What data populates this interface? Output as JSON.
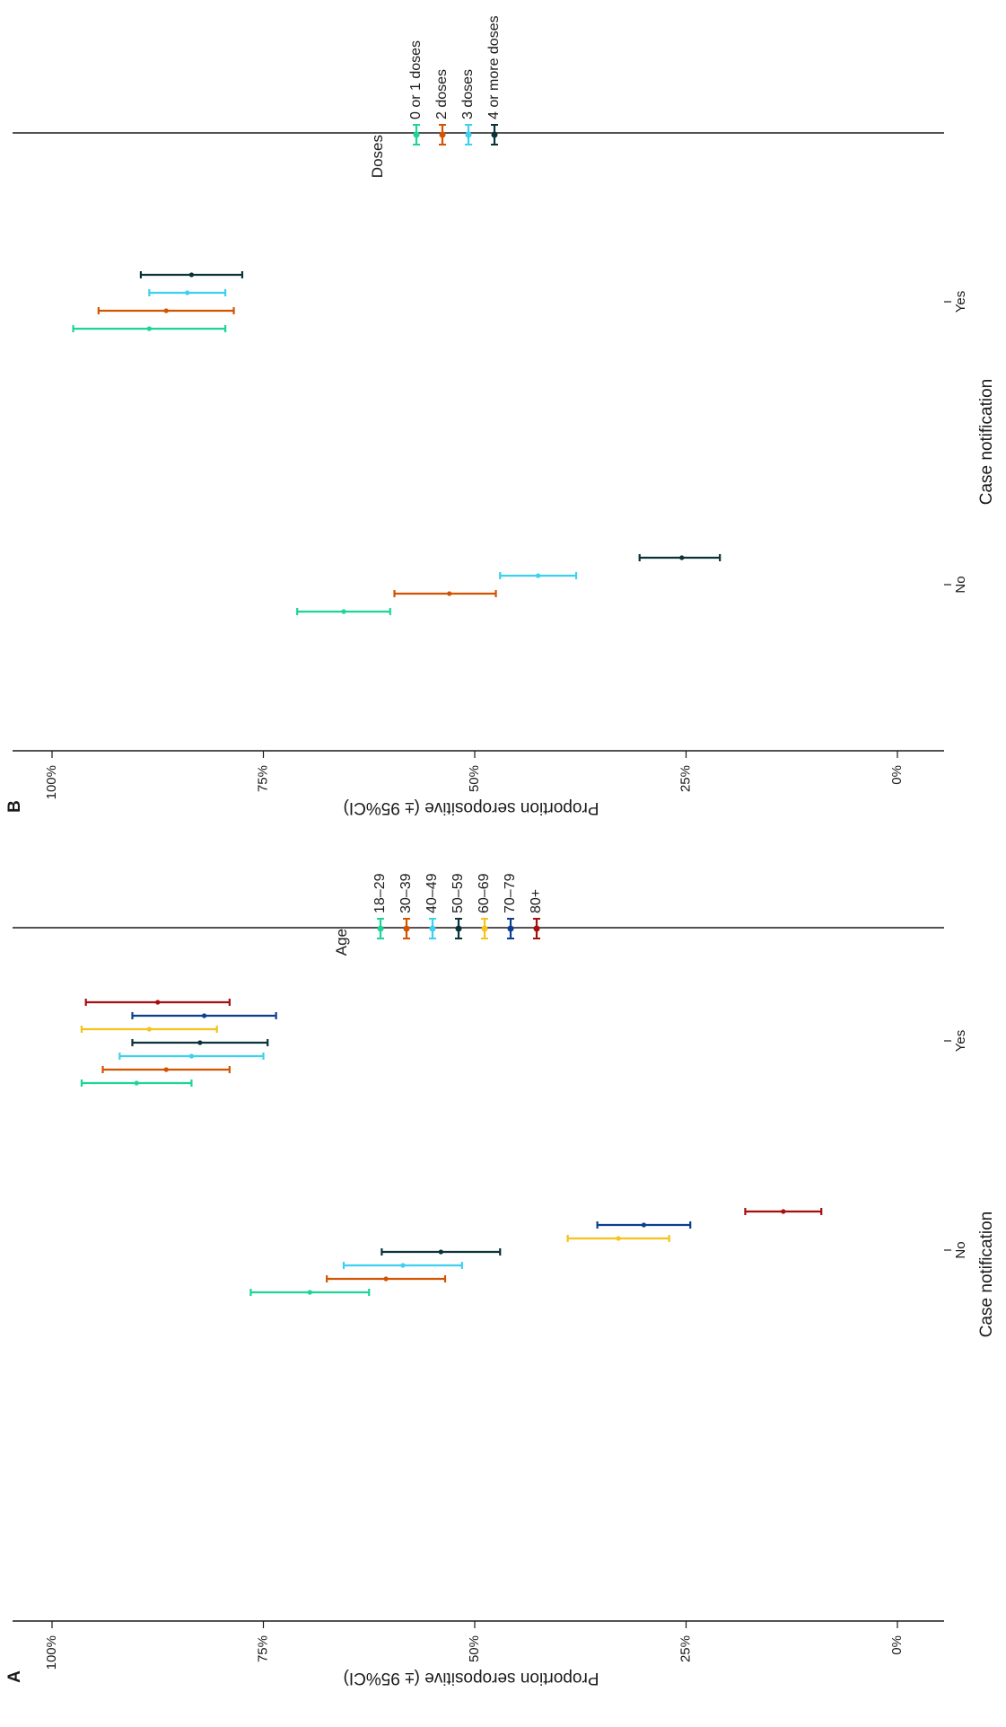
{
  "chart_data": [
    {
      "panel": "A",
      "type": "errorbar",
      "xlabel": "Case notification",
      "ylabel": "Proportion seropositive (± 95%CI)",
      "categories": [
        "No",
        "Yes"
      ],
      "ylim": [
        0,
        1
      ],
      "yticks": [
        "0%",
        "25%",
        "50%",
        "75%",
        "100%"
      ],
      "legend_title": "Age",
      "legend_position": "top-right",
      "grid": false,
      "series": [
        {
          "name": "18–29",
          "color": "#1DD49A",
          "points": [
            {
              "x": "No",
              "est": 0.695,
              "lower": 0.625,
              "upper": 0.765
            },
            {
              "x": "Yes",
              "est": 0.9,
              "lower": 0.835,
              "upper": 0.965
            }
          ]
        },
        {
          "name": "30–39",
          "color": "#D35400",
          "points": [
            {
              "x": "No",
              "est": 0.605,
              "lower": 0.535,
              "upper": 0.675
            },
            {
              "x": "Yes",
              "est": 0.865,
              "lower": 0.79,
              "upper": 0.94
            }
          ]
        },
        {
          "name": "40–49",
          "color": "#3DD0F0",
          "points": [
            {
              "x": "No",
              "est": 0.585,
              "lower": 0.515,
              "upper": 0.655
            },
            {
              "x": "Yes",
              "est": 0.835,
              "lower": 0.75,
              "upper": 0.92
            }
          ]
        },
        {
          "name": "50–59",
          "color": "#0B3239",
          "points": [
            {
              "x": "No",
              "est": 0.54,
              "lower": 0.47,
              "upper": 0.61
            },
            {
              "x": "Yes",
              "est": 0.825,
              "lower": 0.745,
              "upper": 0.905
            }
          ]
        },
        {
          "name": "60–69",
          "color": "#F6C21C",
          "points": [
            {
              "x": "No",
              "est": 0.33,
              "lower": 0.27,
              "upper": 0.39
            },
            {
              "x": "Yes",
              "est": 0.885,
              "lower": 0.805,
              "upper": 0.965
            }
          ]
        },
        {
          "name": "70–79",
          "color": "#0D3F91",
          "points": [
            {
              "x": "No",
              "est": 0.3,
              "lower": 0.245,
              "upper": 0.355
            },
            {
              "x": "Yes",
              "est": 0.82,
              "lower": 0.735,
              "upper": 0.905
            }
          ]
        },
        {
          "name": "80+",
          "color": "#A50F0F",
          "points": [
            {
              "x": "No",
              "est": 0.135,
              "lower": 0.09,
              "upper": 0.18
            },
            {
              "x": "Yes",
              "est": 0.875,
              "lower": 0.79,
              "upper": 0.96
            }
          ]
        }
      ]
    },
    {
      "panel": "B",
      "type": "errorbar",
      "xlabel": "Case notification",
      "ylabel": "Proportion seropositive (± 95%CI)",
      "categories": [
        "No",
        "Yes"
      ],
      "ylim": [
        0,
        1
      ],
      "yticks": [
        "0%",
        "25%",
        "50%",
        "75%",
        "100%"
      ],
      "legend_title": "Doses",
      "legend_position": "top-right",
      "grid": false,
      "series": [
        {
          "name": "0 or 1 doses",
          "color": "#1DD49A",
          "points": [
            {
              "x": "No",
              "est": 0.655,
              "lower": 0.6,
              "upper": 0.71
            },
            {
              "x": "Yes",
              "est": 0.885,
              "lower": 0.795,
              "upper": 0.975
            }
          ]
        },
        {
          "name": "2 doses",
          "color": "#D35400",
          "points": [
            {
              "x": "No",
              "est": 0.53,
              "lower": 0.475,
              "upper": 0.595
            },
            {
              "x": "Yes",
              "est": 0.865,
              "lower": 0.785,
              "upper": 0.945
            }
          ]
        },
        {
          "name": "3 doses",
          "color": "#3DD0F0",
          "points": [
            {
              "x": "No",
              "est": 0.425,
              "lower": 0.38,
              "upper": 0.47
            },
            {
              "x": "Yes",
              "est": 0.84,
              "lower": 0.795,
              "upper": 0.885
            }
          ]
        },
        {
          "name": "4 or more doses",
          "color": "#0B3239",
          "points": [
            {
              "x": "No",
              "est": 0.255,
              "lower": 0.21,
              "upper": 0.305
            },
            {
              "x": "Yes",
              "est": 0.835,
              "lower": 0.775,
              "upper": 0.895
            }
          ]
        }
      ]
    }
  ]
}
